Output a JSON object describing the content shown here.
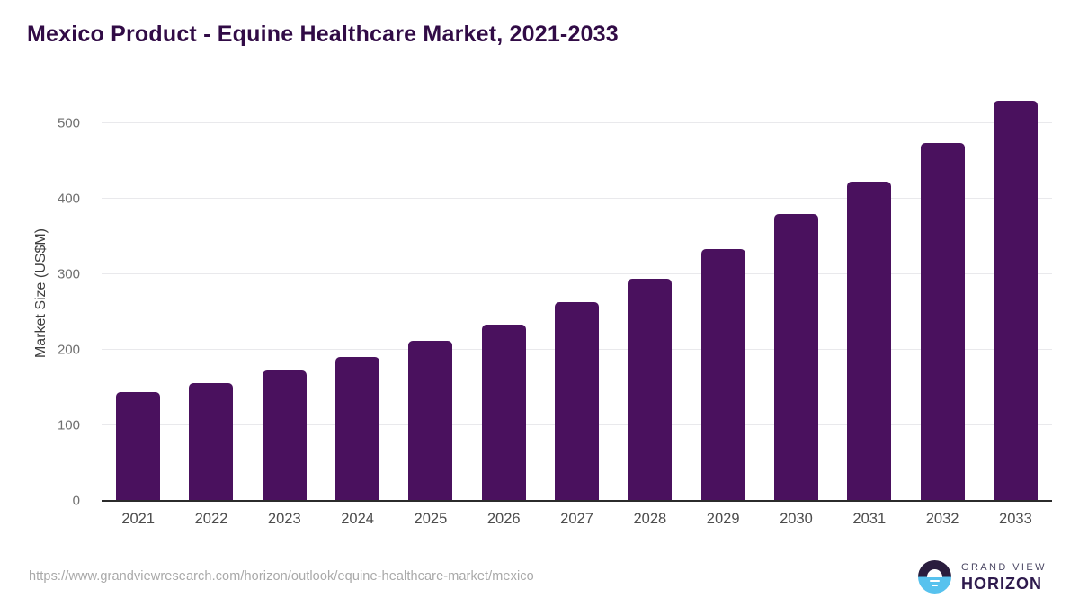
{
  "chart_data": {
    "type": "bar",
    "title": "Mexico Product - Equine Healthcare Market, 2021-2033",
    "categories": [
      "2021",
      "2022",
      "2023",
      "2024",
      "2025",
      "2026",
      "2027",
      "2028",
      "2029",
      "2030",
      "2031",
      "2032",
      "2033"
    ],
    "values": [
      144,
      156,
      173,
      191,
      212,
      233,
      263,
      294,
      333,
      380,
      423,
      474,
      530
    ],
    "xlabel": "",
    "ylabel": "Market Size (US$M)",
    "ylim": [
      0,
      550
    ],
    "yticks": [
      0,
      100,
      200,
      300,
      400,
      500
    ],
    "grid": true,
    "legend": false,
    "bar_color": "#4a115e"
  },
  "footer": {
    "source_url": "https://www.grandviewresearch.com/horizon/outlook/equine-healthcare-market/mexico",
    "logo": {
      "line1": "GRAND VIEW",
      "line2": "HORIZON"
    }
  },
  "colors": {
    "title_text": "#310b46",
    "bar": "#4a115e",
    "axis_line": "#2b2b2b",
    "gridline": "#e9e9ec",
    "y_tick_label": "#6f6f6f",
    "x_tick_label": "#4c4c4c",
    "url_text": "#a9a9a9",
    "logo_dark_half": "#2a1d3e",
    "logo_blue_half": "#57c2ee",
    "logo_text_top": "#4b4763",
    "logo_text_bottom": "#2e1a4d"
  }
}
